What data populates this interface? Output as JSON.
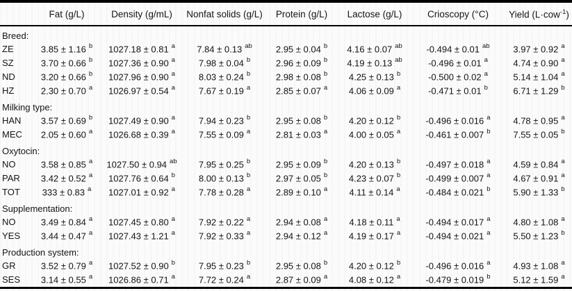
{
  "colors": {
    "background": "#fbfbfb",
    "text": "#141414",
    "rule": "#000000"
  },
  "table": {
    "corner_label": "",
    "columns": [
      {
        "pre": "Fat (g/L)",
        "sup": "",
        "post": ""
      },
      {
        "pre": "Density (g/mL)",
        "sup": "",
        "post": ""
      },
      {
        "pre": "Nonfat solids (g/L)",
        "sup": "",
        "post": ""
      },
      {
        "pre": "Protein (g/L)",
        "sup": "",
        "post": ""
      },
      {
        "pre": "Lactose (g/L)",
        "sup": "",
        "post": ""
      },
      {
        "pre": "Crioscopy (°C)",
        "sup": "",
        "post": ""
      },
      {
        "pre": "Yield (L·cow",
        "sup": "-1",
        "post": ")"
      }
    ],
    "groups": [
      {
        "label": "Breed:",
        "rows": [
          {
            "label": "ZE",
            "cells": [
              {
                "v": "3.85 ± 1.16",
                "s": "b"
              },
              {
                "v": "1027.18 ± 0.81",
                "s": "a"
              },
              {
                "v": "7.84 ± 0.13",
                "s": "ab"
              },
              {
                "v": "2.95 ± 0.04",
                "s": "b"
              },
              {
                "v": "4.16 ± 0.07",
                "s": "ab"
              },
              {
                "v": "-0.494 ± 0.01",
                "s": "ab"
              },
              {
                "v": "3.97 ± 0.92",
                "s": "a"
              }
            ]
          },
          {
            "label": "SZ",
            "cells": [
              {
                "v": "3.70 ± 0.66",
                "s": "b"
              },
              {
                "v": "1027.36 ± 0.90",
                "s": "a"
              },
              {
                "v": "7.98 ± 0.04",
                "s": "b"
              },
              {
                "v": "2.96 ± 0.09",
                "s": "b"
              },
              {
                "v": "4.19 ± 0.13",
                "s": "ab"
              },
              {
                "v": "-0.496 ± 0.01",
                "s": "a"
              },
              {
                "v": "4.74 ± 0.90",
                "s": "a"
              }
            ]
          },
          {
            "label": "ND",
            "cells": [
              {
                "v": "3.20 ± 0.66",
                "s": "b"
              },
              {
                "v": "1027.96 ± 0.90",
                "s": "a"
              },
              {
                "v": "8.03 ± 0.24",
                "s": "b"
              },
              {
                "v": "2.98 ± 0.08",
                "s": "b"
              },
              {
                "v": "4.25 ± 0.13",
                "s": "b"
              },
              {
                "v": "-0.500 ± 0.02",
                "s": "a"
              },
              {
                "v": "5.14 ± 1.04",
                "s": "a"
              }
            ]
          },
          {
            "label": "HZ",
            "cells": [
              {
                "v": "2.30 ± 0.70",
                "s": "a"
              },
              {
                "v": "1026.97 ± 0.54",
                "s": "a"
              },
              {
                "v": "7.67 ± 0.19",
                "s": "a"
              },
              {
                "v": "2.85 ± 0.07",
                "s": "a"
              },
              {
                "v": "4.06 ± 0.09",
                "s": "a"
              },
              {
                "v": "-0.471 ± 0.01",
                "s": "b"
              },
              {
                "v": "6.71 ± 1.29",
                "s": "b"
              }
            ]
          }
        ]
      },
      {
        "label": "Milking type:",
        "rows": [
          {
            "label": "HAN",
            "cells": [
              {
                "v": "3.57 ± 0.69",
                "s": "b"
              },
              {
                "v": "1027.49 ± 0.90",
                "s": "a"
              },
              {
                "v": "7.94 ± 0.23",
                "s": "b"
              },
              {
                "v": "2.95 ± 0.08",
                "s": "b"
              },
              {
                "v": "4.20 ± 0.12",
                "s": "b"
              },
              {
                "v": "-0.496 ± 0.016",
                "s": "a"
              },
              {
                "v": "4.78 ± 0.95",
                "s": "a"
              }
            ]
          },
          {
            "label": "MEC",
            "cells": [
              {
                "v": "2.05 ± 0.60",
                "s": "a"
              },
              {
                "v": "1026.68 ± 0.39",
                "s": "a"
              },
              {
                "v": "7.55 ± 0.09",
                "s": "a"
              },
              {
                "v": "2.81 ± 0.03",
                "s": "a"
              },
              {
                "v": "4.00 ± 0.05",
                "s": "a"
              },
              {
                "v": "-0.461 ± 0.007",
                "s": "b"
              },
              {
                "v": "7.55 ± 0.05",
                "s": "b"
              }
            ]
          }
        ]
      },
      {
        "label": "Oxytocin:",
        "rows": [
          {
            "label": "NO",
            "cells": [
              {
                "v": "3.58 ± 0.85",
                "s": "a"
              },
              {
                "v": "1027.50 ± 0.94",
                "s": "ab"
              },
              {
                "v": "7.95 ± 0.25",
                "s": "b"
              },
              {
                "v": "2.95 ± 0.09",
                "s": "b"
              },
              {
                "v": "4.20 ± 0.13",
                "s": "b"
              },
              {
                "v": "-0.497 ± 0.018",
                "s": "a"
              },
              {
                "v": "4.59 ± 0.84",
                "s": "a"
              }
            ]
          },
          {
            "label": "PAR",
            "cells": [
              {
                "v": "3.42 ± 0.52",
                "s": "a"
              },
              {
                "v": "1027.76 ± 0.64",
                "s": "b"
              },
              {
                "v": "8.00 ± 0.13",
                "s": "b"
              },
              {
                "v": "2.97 ± 0.05",
                "s": "b"
              },
              {
                "v": "4.23 ± 0.07",
                "s": "b"
              },
              {
                "v": "-0.499 ± 0.007",
                "s": "a"
              },
              {
                "v": "4.67 ± 0.91",
                "s": "a"
              }
            ]
          },
          {
            "label": "TOT",
            "cells": [
              {
                "v": "333 ± 0.83",
                "s": "a"
              },
              {
                "v": "1027.01 ± 0.92",
                "s": "a"
              },
              {
                "v": "7.78 ± 0.28",
                "s": "a"
              },
              {
                "v": "2.89 ± 0.10",
                "s": "a"
              },
              {
                "v": "4.11 ± 0.14",
                "s": "a"
              },
              {
                "v": "-0.484 ± 0.021",
                "s": "b"
              },
              {
                "v": "5.90 ± 1.33",
                "s": "b"
              }
            ]
          }
        ]
      },
      {
        "label": "Supplementation:",
        "rows": [
          {
            "label": "NO",
            "cells": [
              {
                "v": "3.49 ± 0.84",
                "s": "a"
              },
              {
                "v": "1027.45 ± 0.80",
                "s": "a"
              },
              {
                "v": "7.92 ± 0.22",
                "s": "a"
              },
              {
                "v": "2.94 ± 0.08",
                "s": "a"
              },
              {
                "v": "4.18 ± 0.11",
                "s": "a"
              },
              {
                "v": "-0.494 ± 0.017",
                "s": "a"
              },
              {
                "v": "4.80 ± 1.08",
                "s": "a"
              }
            ]
          },
          {
            "label": "YES",
            "cells": [
              {
                "v": "3.44 ± 0.47",
                "s": "a"
              },
              {
                "v": "1027.43 ± 1.21",
                "s": "a"
              },
              {
                "v": "7.92 ± 0.33",
                "s": "a"
              },
              {
                "v": "2.94 ± 0.12",
                "s": "a"
              },
              {
                "v": "4.19 ± 0.17",
                "s": "a"
              },
              {
                "v": "-0.494 ± 0.021",
                "s": "a"
              },
              {
                "v": "5.50 ± 1.23",
                "s": "b"
              }
            ]
          }
        ]
      },
      {
        "label": "Production system:",
        "rows": [
          {
            "label": "GR",
            "cells": [
              {
                "v": "3.52 ± 0.79",
                "s": "a"
              },
              {
                "v": "1027.52 ± 0.90",
                "s": "b"
              },
              {
                "v": "7.95 ± 0.23",
                "s": "b"
              },
              {
                "v": "2.95 ± 0.08",
                "s": "b"
              },
              {
                "v": "4.20 ± 0.12",
                "s": "b"
              },
              {
                "v": "-0.496 ± 0.016",
                "s": "a"
              },
              {
                "v": "4.93 ± 1.08",
                "s": "a"
              }
            ]
          },
          {
            "label": "SES",
            "cells": [
              {
                "v": "3.14 ± 0.55",
                "s": "a"
              },
              {
                "v": "1026.86 ± 0.71",
                "s": "a"
              },
              {
                "v": "7.72 ± 0.24",
                "s": "a"
              },
              {
                "v": "2.87 ± 0.09",
                "s": "a"
              },
              {
                "v": "4.08 ± 0.12",
                "s": "a"
              },
              {
                "v": "-0.479 ± 0.019",
                "s": "b"
              },
              {
                "v": "5.12 ± 1.59",
                "s": "a"
              }
            ]
          }
        ]
      }
    ]
  }
}
